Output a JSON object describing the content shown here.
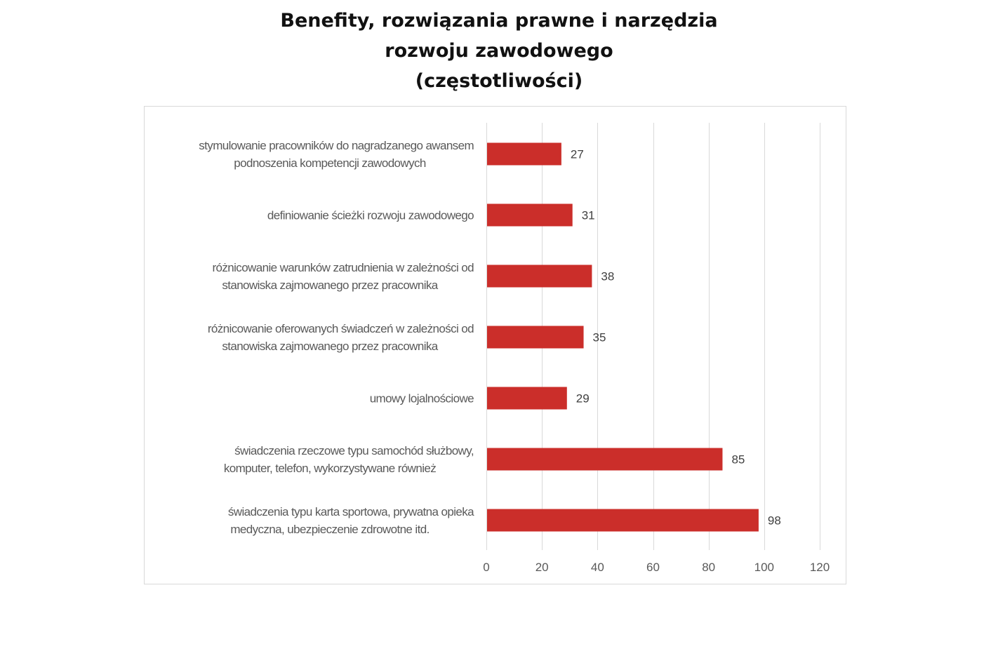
{
  "chart_data": {
    "type": "bar",
    "orientation": "horizontal",
    "title_lines": [
      "Benefity, rozwiązania prawne i narzędzia",
      "rozwoju zawodowego",
      "(częstotliwości)"
    ],
    "categories": [
      [
        "stymulowanie pracowników do nagradzanego awansem",
        "podnoszenia kompetencji zawodowych"
      ],
      [
        "definiowanie ścieżki rozwoju zawodowego"
      ],
      [
        "różnicowanie warunków zatrudnienia w zależności od",
        "stanowiska zajmowanego przez pracownika"
      ],
      [
        "różnicowanie oferowanych świadczeń w zależności od",
        "stanowiska zajmowanego przez pracownika"
      ],
      [
        "umowy lojalnościowe"
      ],
      [
        "świadczenia rzeczowe typu samochód służbowy,",
        "komputer, telefon, wykorzystywane również"
      ],
      [
        "świadczenia typu karta sportowa, prywatna opieka",
        "medyczna, ubezpieczenie zdrowotne itd."
      ]
    ],
    "values": [
      27,
      31,
      38,
      35,
      29,
      85,
      98
    ],
    "data_labels": [
      "27",
      "31",
      "38",
      "35",
      "29",
      "85",
      "98"
    ],
    "xlim": [
      0,
      120
    ],
    "xticks": [
      0,
      20,
      40,
      60,
      80,
      100,
      120
    ],
    "xtick_labels": [
      "0",
      "20",
      "40",
      "60",
      "80",
      "100",
      "120"
    ],
    "bar_color": "#cb2e2a",
    "grid": true,
    "grid_color": "#d9d9d9",
    "xlabel": "",
    "ylabel": ""
  }
}
